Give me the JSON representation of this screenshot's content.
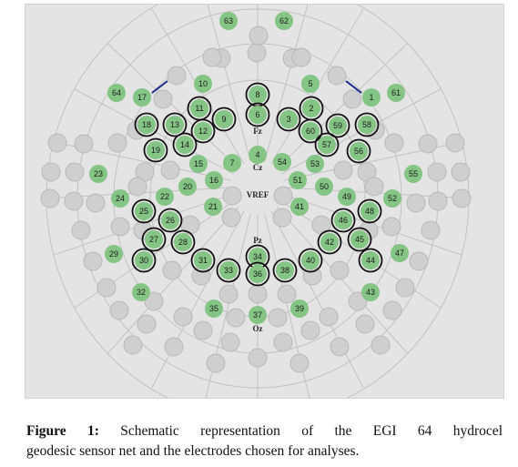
{
  "figure": {
    "caption_label": "Figure 1:",
    "caption_line1": "Schematic representation of the EGI 64 hydrocel",
    "caption_line2": "geodesic sensor net and the electrodes chosen for analyses."
  },
  "colors": {
    "active": "#84c484",
    "inactive": "#cfcfcf",
    "selected_ring": "#111111",
    "background": "#e4e4e4",
    "link": "#1a2a8a"
  },
  "landmarks": [
    "Fz",
    "Cz",
    "VREF",
    "Pz",
    "Oz"
  ],
  "electrodes": [
    {
      "id": "63",
      "selected": false
    },
    {
      "id": "62",
      "selected": false
    },
    {
      "id": "64",
      "selected": false
    },
    {
      "id": "17",
      "selected": false
    },
    {
      "id": "10",
      "selected": false
    },
    {
      "id": "5",
      "selected": false
    },
    {
      "id": "1",
      "selected": false
    },
    {
      "id": "61",
      "selected": false
    },
    {
      "id": "8",
      "selected": true
    },
    {
      "id": "11",
      "selected": true
    },
    {
      "id": "2",
      "selected": true
    },
    {
      "id": "6",
      "selected": true
    },
    {
      "id": "9",
      "selected": true
    },
    {
      "id": "3",
      "selected": true
    },
    {
      "id": "18",
      "selected": true
    },
    {
      "id": "13",
      "selected": true
    },
    {
      "id": "12",
      "selected": true
    },
    {
      "id": "60",
      "selected": true
    },
    {
      "id": "59",
      "selected": true
    },
    {
      "id": "58",
      "selected": true
    },
    {
      "id": "19",
      "selected": true
    },
    {
      "id": "14",
      "selected": true
    },
    {
      "id": "57",
      "selected": true
    },
    {
      "id": "56",
      "selected": true
    },
    {
      "id": "15",
      "selected": false
    },
    {
      "id": "7",
      "selected": false
    },
    {
      "id": "4",
      "selected": false
    },
    {
      "id": "54",
      "selected": false
    },
    {
      "id": "53",
      "selected": false
    },
    {
      "id": "23",
      "selected": false
    },
    {
      "id": "55",
      "selected": false
    },
    {
      "id": "16",
      "selected": false
    },
    {
      "id": "51",
      "selected": false
    },
    {
      "id": "20",
      "selected": false
    },
    {
      "id": "50",
      "selected": false
    },
    {
      "id": "24",
      "selected": false
    },
    {
      "id": "22",
      "selected": false
    },
    {
      "id": "49",
      "selected": false
    },
    {
      "id": "52",
      "selected": false
    },
    {
      "id": "21",
      "selected": false
    },
    {
      "id": "41",
      "selected": false
    },
    {
      "id": "25",
      "selected": true
    },
    {
      "id": "48",
      "selected": true
    },
    {
      "id": "26",
      "selected": true
    },
    {
      "id": "46",
      "selected": true
    },
    {
      "id": "27",
      "selected": true
    },
    {
      "id": "28",
      "selected": true
    },
    {
      "id": "42",
      "selected": true
    },
    {
      "id": "45",
      "selected": true
    },
    {
      "id": "29",
      "selected": false
    },
    {
      "id": "47",
      "selected": false
    },
    {
      "id": "34",
      "selected": true
    },
    {
      "id": "30",
      "selected": true
    },
    {
      "id": "31",
      "selected": true
    },
    {
      "id": "40",
      "selected": true
    },
    {
      "id": "44",
      "selected": true
    },
    {
      "id": "33",
      "selected": true
    },
    {
      "id": "36",
      "selected": true
    },
    {
      "id": "38",
      "selected": true
    },
    {
      "id": "32",
      "selected": false
    },
    {
      "id": "43",
      "selected": false
    },
    {
      "id": "35",
      "selected": false
    },
    {
      "id": "37",
      "selected": false
    },
    {
      "id": "39",
      "selected": false
    }
  ]
}
